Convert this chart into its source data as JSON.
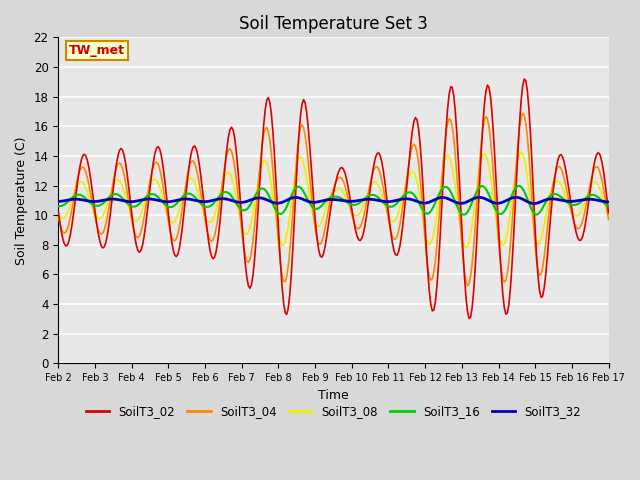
{
  "title": "Soil Temperature Set 3",
  "xlabel": "Time",
  "ylabel": "Soil Temperature (C)",
  "xlim": [
    0,
    15
  ],
  "ylim": [
    0,
    22
  ],
  "yticks": [
    0,
    2,
    4,
    6,
    8,
    10,
    12,
    14,
    16,
    18,
    20,
    22
  ],
  "xtick_labels": [
    "Feb 2",
    "Feb 3",
    "Feb 4",
    "Feb 5",
    "Feb 6",
    "Feb 7",
    "Feb 8",
    "Feb 9",
    "Feb 10",
    "Feb 11",
    "Feb 12",
    "Feb 13",
    "Feb 14",
    "Feb 15",
    "Feb 16",
    "Feb 17"
  ],
  "annotation_text": "TW_met",
  "annotation_color": "#cc0000",
  "annotation_bg": "#ffffcc",
  "annotation_border": "#cc8800",
  "colors": {
    "SoilT3_02": "#dd0000",
    "SoilT3_04": "#ff8800",
    "SoilT3_08": "#eeee00",
    "SoilT3_16": "#00cc00",
    "SoilT3_32": "#0000bb"
  },
  "bg_color": "#d8d8d8",
  "plot_bg": "#e8e8e8"
}
